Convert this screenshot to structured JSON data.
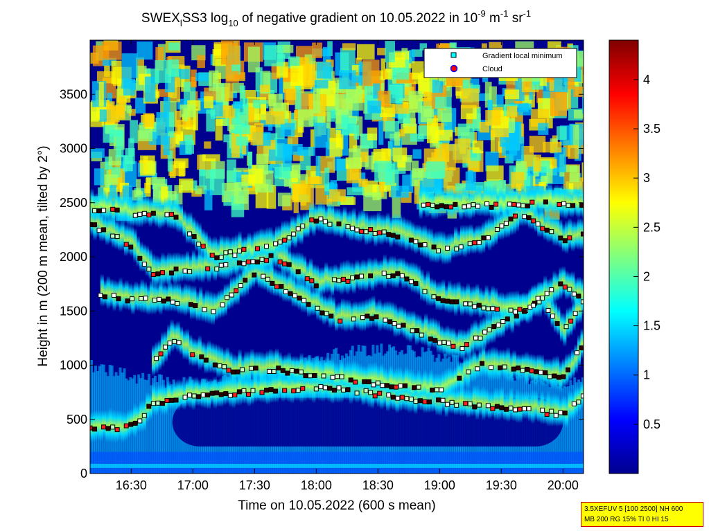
{
  "chart_data": {
    "type": "heatmap",
    "title": {
      "p1": "SWEX",
      "sub1": "l",
      "p2": "SS3 log",
      "sub2": "10",
      "p3": " of negative gradient on 10.05.2022 in 10",
      "sup1": "-9",
      "p4": " m",
      "sup2": "-1",
      "p5": " sr",
      "sup3": "-1"
    },
    "xlabel": "Time on 10.05.2022 (600 s mean)",
    "ylabel": "Height in m (200 m mean, tilted by 2°)",
    "x_ticks": [
      "16:30",
      "17:00",
      "17:30",
      "18:00",
      "18:30",
      "19:00",
      "19:30",
      "20:00"
    ],
    "x_tick_minutes": [
      990,
      1020,
      1050,
      1080,
      1110,
      1140,
      1170,
      1200
    ],
    "x_range_minutes": [
      970,
      1210
    ],
    "y_ticks": [
      0,
      500,
      1000,
      1500,
      2000,
      2500,
      3000,
      3500
    ],
    "ylim": [
      0,
      4000
    ],
    "colorbar": {
      "ticks": [
        "0.5",
        "1",
        "1.5",
        "2",
        "2.5",
        "3",
        "3.5",
        "4"
      ],
      "tick_values": [
        0.5,
        1,
        1.5,
        2,
        2.5,
        3,
        3.5,
        4
      ],
      "range": [
        0,
        4.4
      ],
      "colormap": "jet"
    },
    "legend": {
      "placement": "top-right",
      "entries": [
        {
          "label": "Gradient local minimum",
          "marker": "square",
          "color": "#00ffff"
        },
        {
          "label": "Cloud",
          "marker": "circle",
          "color": "#ff0000",
          "edge": "#0000ff"
        }
      ]
    },
    "layers": [
      {
        "name": "gradient-minimum-layer-1",
        "points": [
          [
            970,
            420
          ],
          [
            985,
            410
          ],
          [
            995,
            500
          ],
          [
            1000,
            650
          ],
          [
            1010,
            680
          ],
          [
            1020,
            720
          ],
          [
            1040,
            740
          ],
          [
            1060,
            770
          ],
          [
            1080,
            790
          ],
          [
            1100,
            760
          ],
          [
            1120,
            690
          ],
          [
            1140,
            660
          ],
          [
            1160,
            620
          ],
          [
            1180,
            600
          ],
          [
            1200,
            540
          ],
          [
            1210,
            720
          ]
        ]
      },
      {
        "name": "gradient-minimum-layer-2",
        "points": [
          [
            1000,
            1000
          ],
          [
            1010,
            1250
          ],
          [
            1020,
            1100
          ],
          [
            1040,
            950
          ],
          [
            1060,
            960
          ],
          [
            1080,
            900
          ],
          [
            1100,
            860
          ],
          [
            1120,
            800
          ],
          [
            1140,
            760
          ],
          [
            1160,
            1000
          ],
          [
            1180,
            960
          ],
          [
            1200,
            880
          ],
          [
            1210,
            1200
          ]
        ]
      },
      {
        "name": "gradient-minimum-layer-3",
        "points": [
          [
            975,
            1650
          ],
          [
            990,
            1600
          ],
          [
            1010,
            1600
          ],
          [
            1030,
            1500
          ],
          [
            1050,
            1850
          ],
          [
            1070,
            1640
          ],
          [
            1090,
            1420
          ],
          [
            1110,
            1450
          ],
          [
            1130,
            1300
          ],
          [
            1150,
            1150
          ],
          [
            1170,
            1380
          ],
          [
            1190,
            1600
          ],
          [
            1200,
            1300
          ],
          [
            1210,
            1580
          ]
        ]
      },
      {
        "name": "gradient-minimum-layer-4",
        "points": [
          [
            970,
            2300
          ],
          [
            990,
            2100
          ],
          [
            1000,
            1850
          ],
          [
            1030,
            1900
          ],
          [
            1060,
            2000
          ],
          [
            1080,
            1750
          ],
          [
            1100,
            1800
          ],
          [
            1120,
            1850
          ],
          [
            1140,
            1600
          ],
          [
            1160,
            1550
          ],
          [
            1180,
            1500
          ],
          [
            1200,
            1750
          ],
          [
            1210,
            1600
          ]
        ]
      },
      {
        "name": "gradient-minimum-layer-5",
        "points": [
          [
            970,
            2450
          ],
          [
            990,
            2400
          ],
          [
            1010,
            2380
          ],
          [
            1030,
            2000
          ],
          [
            1060,
            2100
          ],
          [
            1080,
            2350
          ],
          [
            1100,
            2250
          ],
          [
            1120,
            2200
          ],
          [
            1140,
            2050
          ],
          [
            1160,
            2150
          ],
          [
            1180,
            2400
          ],
          [
            1200,
            2150
          ],
          [
            1210,
            2200
          ]
        ]
      },
      {
        "name": "gradient-minimum-layer-6",
        "points": [
          [
            1130,
            2480
          ],
          [
            1150,
            2480
          ],
          [
            1170,
            2470
          ],
          [
            1190,
            2500
          ],
          [
            1210,
            2460
          ]
        ]
      }
    ]
  },
  "info_box": {
    "line1": "3.5XEFUV 5 [100 2500] NH 600",
    "line2": "MB 200 RG 15% TI 0 HI 15"
  }
}
